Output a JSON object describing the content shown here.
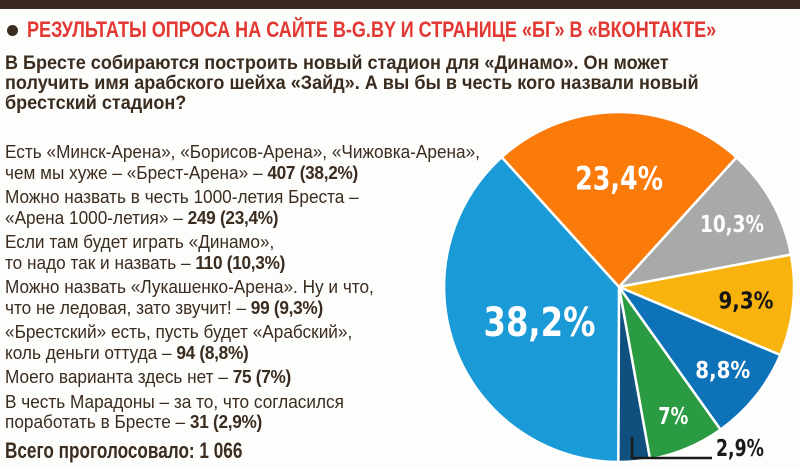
{
  "colors": {
    "top_bar": "#38281d",
    "text": "#3b2c20",
    "headline": "#e23733",
    "background": "#fdfdfb"
  },
  "header": {
    "title": "РЕЗУЛЬТАТЫ ОПРОСА НА САЙТЕ B-G.BY И СТРАНИЦЕ «БГ» В «ВКОНТАКТЕ»",
    "question": "В Бресте собираются построить новый стадион для «Динамо». Он может\nполучить имя арабского шейха «Зайд». А вы бы в честь кого назвали новый\nбрестский стадион?"
  },
  "poll": {
    "answers": [
      {
        "text": "Есть «Минск-Арена», «Борисов-Арена», «Чижовка-Арена»,\nчем мы хуже – «Брест-Арена» – ",
        "value": "407 (38,2%)"
      },
      {
        "text": "Можно назвать в честь 1000-летия Бреста –\n«Арена 1000-летия» – ",
        "value": "249 (23,4%)"
      },
      {
        "text": "Если там будет играть «Динамо»,\nто надо так и назвать – ",
        "value": "110 (10,3%)"
      },
      {
        "text": "Можно назвать «Лукашенко-Арена». Ну и что,\nчто не ледовая, зато звучит! – ",
        "value": "99 (9,3%)"
      },
      {
        "text": "«Брестский» есть, пусть будет «Арабский»,\nколь деньги оттуда – ",
        "value": "94 (8,8%)"
      },
      {
        "text": "Моего варианта здесь нет – ",
        "value": "75 (7%)"
      },
      {
        "text": "В честь Марадоны – за то, что согласился\nпоработать в Бресте – ",
        "value": "31 (2,9%)"
      }
    ],
    "total_label": "Всего проголосовало: 1 066"
  },
  "chart_data": {
    "type": "pie",
    "title": "РЕЗУЛЬТАТЫ ОПРОСА НА САЙТЕ B-G.BY И СТРАНИЦЕ «БГ» В «ВКОНТАКТЕ»",
    "total_votes": "1 066",
    "legend_position": "none",
    "start_angle_deg": -42.1,
    "slices": [
      {
        "name": "arena-1000-letia",
        "label": "23,4%",
        "pct": 23.4,
        "votes": 249,
        "answer": "Можно назвать в честь 1000-летия Бреста – «Арена 1000-летия»",
        "color": "#fa7a0a",
        "label_color": "#ffffff"
      },
      {
        "name": "dinamo",
        "label": "10,3%",
        "pct": 10.3,
        "votes": 110,
        "answer": "Если там будет играть «Динамо», то надо так и назвать",
        "color": "#a8aaaa",
        "label_color": "#ffffff"
      },
      {
        "name": "lukashenko-arena",
        "label": "9,3%",
        "pct": 9.3,
        "votes": 99,
        "answer": "Можно назвать «Лукашенко-Арена». Ну и что, что не ледовая, зато звучит!",
        "color": "#f8b30f",
        "label_color": "#151515"
      },
      {
        "name": "arabskiy",
        "label": "8,8%",
        "pct": 8.8,
        "votes": 94,
        "answer": "«Брестский» есть, пусть будет «Арабский», коль деньги оттуда",
        "color": "#0e72b8",
        "label_color": "#ffffff"
      },
      {
        "name": "no-my-option",
        "label": "7%",
        "pct": 7,
        "votes": 75,
        "answer": "Моего варианта здесь нет",
        "color": "#2b9b43",
        "label_color": "#ffffff"
      },
      {
        "name": "maradona",
        "label": "2,9%",
        "pct": 2.9,
        "votes": 31,
        "answer": "В честь Марадоны – за то, что согласился поработать в Бресте",
        "color": "#10507f",
        "label_color": "#1a1a1a",
        "label_outside": true
      },
      {
        "name": "brest-arena",
        "label": "38,2%",
        "pct": 38.2,
        "votes": 407,
        "answer": "Есть «Минск-Арена», «Борисов-Арена», «Чижовка-Арена», чем мы хуже – «Брест-Арена»",
        "color": "#1a9ad6",
        "label_color": "#ffffff"
      }
    ]
  }
}
